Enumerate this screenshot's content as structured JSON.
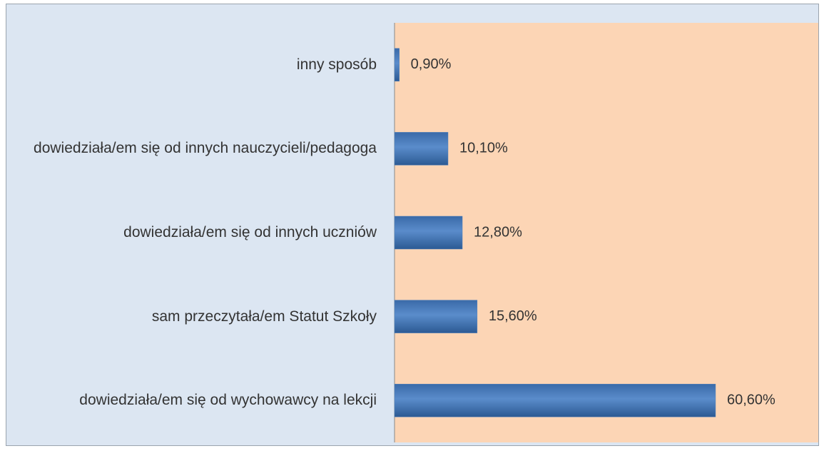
{
  "chart_data": {
    "type": "bar",
    "orientation": "horizontal",
    "categories": [
      "inny sposób",
      "dowiedziała/em się od innych nauczycieli/pedagoga",
      "dowiedziała/em się od innych uczniów",
      "sam przeczytała/em Statut Szkoły",
      "dowiedziała/em się od wychowawcy na lekcji"
    ],
    "values": [
      0.9,
      10.1,
      12.8,
      15.6,
      60.6
    ],
    "value_labels": [
      "0,90%",
      "10,10%",
      "12,80%",
      "15,60%",
      "60,60%"
    ],
    "color": "#4f81bd",
    "xlim": [
      0,
      80
    ]
  }
}
